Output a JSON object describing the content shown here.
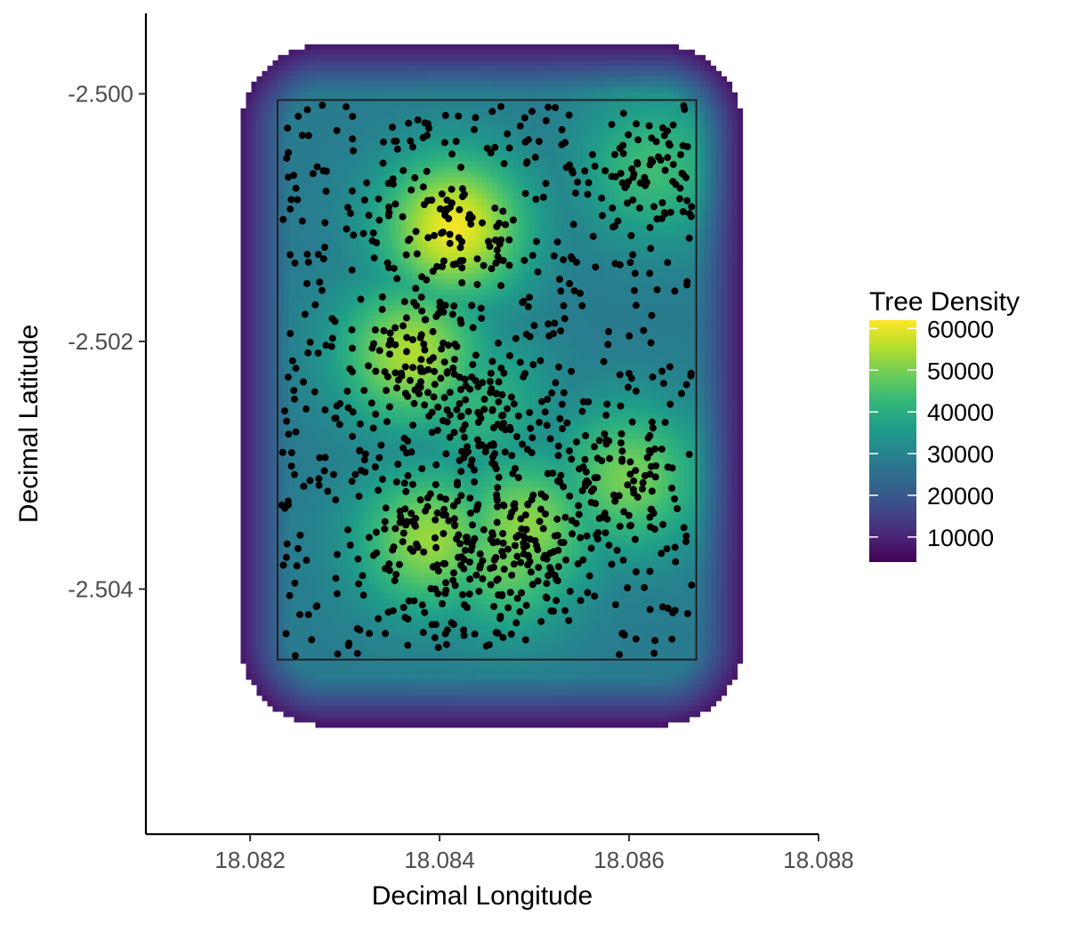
{
  "chart_data": {
    "type": "heatmap",
    "xlabel": "Decimal Longitude",
    "ylabel": "Decimal Latitude",
    "xlim": [
      18.0809,
      18.088
    ],
    "ylim": [
      -2.50598,
      -2.49935
    ],
    "x_ticks": [
      {
        "value": 18.082,
        "label": "18.082"
      },
      {
        "value": 18.084,
        "label": "18.084"
      },
      {
        "value": 18.086,
        "label": "18.086"
      },
      {
        "value": 18.088,
        "label": "18.088"
      }
    ],
    "y_ticks": [
      {
        "value": -2.5,
        "label": "-2.500"
      },
      {
        "value": -2.502,
        "label": "-2.502"
      },
      {
        "value": -2.504,
        "label": "-2.504"
      }
    ],
    "plot_extent": {
      "x": [
        18.08229,
        18.08671
      ],
      "y": [
        -2.50457,
        -2.50005
      ]
    },
    "density_extent": {
      "x": [
        18.0819,
        18.0872
      ],
      "y": [
        -2.5051,
        -2.4996
      ]
    },
    "legend": {
      "title": "Tree Density",
      "position": "right",
      "min": 4000,
      "max": 62000,
      "breaks": [
        {
          "value": 60000,
          "label": "60000"
        },
        {
          "value": 50000,
          "label": "50000"
        },
        {
          "value": 40000,
          "label": "40000"
        },
        {
          "value": 30000,
          "label": "30000"
        },
        {
          "value": 20000,
          "label": "20000"
        },
        {
          "value": 10000,
          "label": "10000"
        }
      ],
      "colormap": "viridis",
      "colors": [
        "#440154",
        "#482878",
        "#3E4A89",
        "#31688E",
        "#26828E",
        "#1F9E89",
        "#35B779",
        "#6DCD59",
        "#B4DE2C",
        "#FDE725"
      ]
    },
    "density_peaks": [
      {
        "x": 18.08415,
        "y": -2.50108,
        "value": 61000
      },
      {
        "x": 18.0837,
        "y": -2.5021,
        "value": 55000
      },
      {
        "x": 18.0839,
        "y": -2.5036,
        "value": 53000
      },
      {
        "x": 18.0847,
        "y": -2.50375,
        "value": 49000
      },
      {
        "x": 18.0849,
        "y": -2.5035,
        "value": 52000
      },
      {
        "x": 18.086,
        "y": -2.5031,
        "value": 50000
      },
      {
        "x": 18.08625,
        "y": -2.5006,
        "value": 44000
      },
      {
        "x": 18.0844,
        "y": -2.5025,
        "value": 42000
      }
    ],
    "density_background": 28000,
    "points": {
      "series": "trees",
      "color": "#000000",
      "count": 1100
    },
    "grid": false
  }
}
